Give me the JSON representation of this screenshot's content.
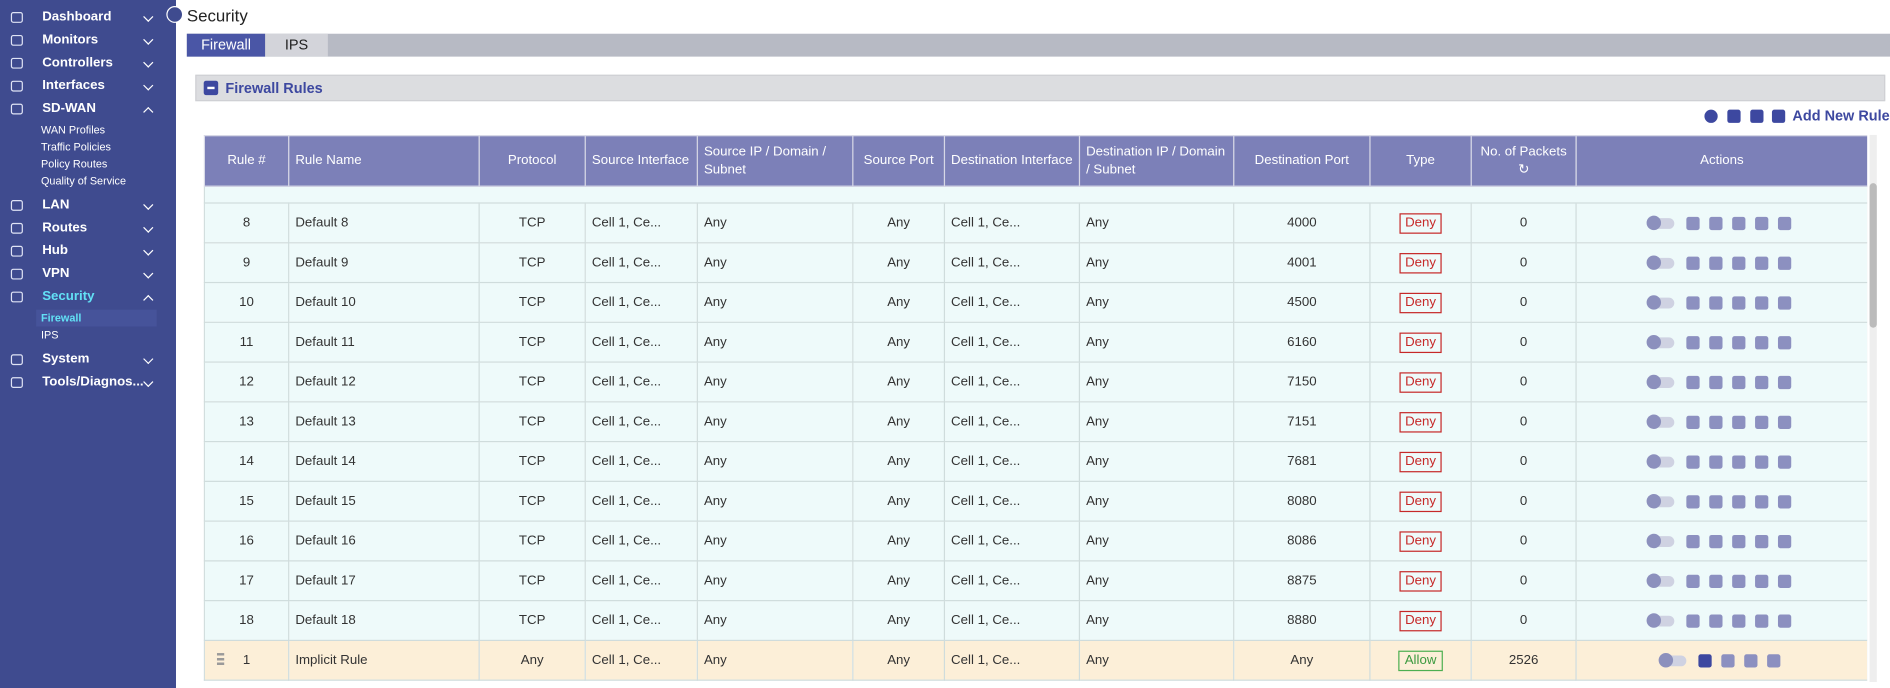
{
  "sidebar": {
    "items": [
      {
        "label": "Dashboard"
      },
      {
        "label": "Monitors"
      },
      {
        "label": "Controllers"
      },
      {
        "label": "Interfaces"
      },
      {
        "label": "SD-WAN",
        "children": [
          "WAN Profiles",
          "Traffic Policies",
          "Policy Routes",
          "Quality of Service"
        ]
      },
      {
        "label": "LAN"
      },
      {
        "label": "Routes"
      },
      {
        "label": "Hub"
      },
      {
        "label": "VPN"
      },
      {
        "label": "Security",
        "children": [
          "Firewall",
          "IPS"
        ]
      },
      {
        "label": "System"
      },
      {
        "label": "Tools/Diagnos..."
      }
    ]
  },
  "page": {
    "title": "Security",
    "tabs": [
      "Firewall",
      "IPS"
    ],
    "panel_title": "Firewall Rules",
    "add_button": "Add New Rule"
  },
  "table": {
    "headers": [
      "Rule #",
      "Rule Name",
      "Protocol",
      "Source Interface",
      "Source IP / Domain / Subnet",
      "Source Port",
      "Destination Interface",
      "Destination IP / Domain / Subnet",
      "Destination Port",
      "Type",
      "No. of Packets",
      "Actions"
    ],
    "rows": [
      [
        "8",
        "Default 8",
        "TCP",
        "Cell 1, Ce...",
        "Any",
        "Any",
        "Cell 1, Ce...",
        "Any",
        "4000",
        "Deny",
        "0"
      ],
      [
        "9",
        "Default 9",
        "TCP",
        "Cell 1, Ce...",
        "Any",
        "Any",
        "Cell 1, Ce...",
        "Any",
        "4001",
        "Deny",
        "0"
      ],
      [
        "10",
        "Default 10",
        "TCP",
        "Cell 1, Ce...",
        "Any",
        "Any",
        "Cell 1, Ce...",
        "Any",
        "4500",
        "Deny",
        "0"
      ],
      [
        "11",
        "Default 11",
        "TCP",
        "Cell 1, Ce...",
        "Any",
        "Any",
        "Cell 1, Ce...",
        "Any",
        "6160",
        "Deny",
        "0"
      ],
      [
        "12",
        "Default 12",
        "TCP",
        "Cell 1, Ce...",
        "Any",
        "Any",
        "Cell 1, Ce...",
        "Any",
        "7150",
        "Deny",
        "0"
      ],
      [
        "13",
        "Default 13",
        "TCP",
        "Cell 1, Ce...",
        "Any",
        "Any",
        "Cell 1, Ce...",
        "Any",
        "7151",
        "Deny",
        "0"
      ],
      [
        "14",
        "Default 14",
        "TCP",
        "Cell 1, Ce...",
        "Any",
        "Any",
        "Cell 1, Ce...",
        "Any",
        "7681",
        "Deny",
        "0"
      ],
      [
        "15",
        "Default 15",
        "TCP",
        "Cell 1, Ce...",
        "Any",
        "Any",
        "Cell 1, Ce...",
        "Any",
        "8080",
        "Deny",
        "0"
      ],
      [
        "16",
        "Default 16",
        "TCP",
        "Cell 1, Ce...",
        "Any",
        "Any",
        "Cell 1, Ce...",
        "Any",
        "8086",
        "Deny",
        "0"
      ],
      [
        "17",
        "Default 17",
        "TCP",
        "Cell 1, Ce...",
        "Any",
        "Any",
        "Cell 1, Ce...",
        "Any",
        "8875",
        "Deny",
        "0"
      ],
      [
        "18",
        "Default 18",
        "TCP",
        "Cell 1, Ce...",
        "Any",
        "Any",
        "Cell 1, Ce...",
        "Any",
        "8880",
        "Deny",
        "0"
      ],
      [
        "1",
        "Implicit Rule",
        "Any",
        "Cell 1, Ce...",
        "Any",
        "Any",
        "Cell 1, Ce...",
        "Any",
        "Any",
        "Allow",
        "2526"
      ]
    ]
  }
}
